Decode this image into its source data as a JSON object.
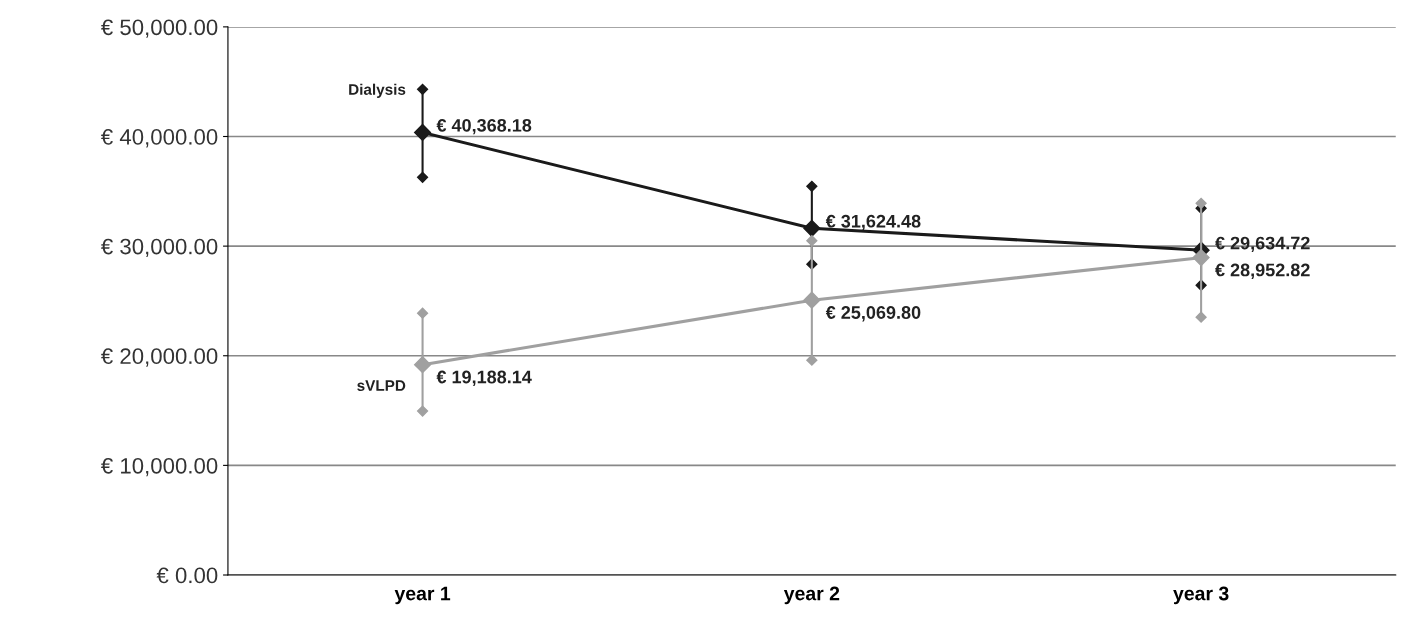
{
  "chart_data": {
    "type": "line",
    "categories": [
      "year 1",
      "year 2",
      "year 3"
    ],
    "series": [
      {
        "name": "Dialysis",
        "color": "#1a1a1a",
        "values": [
          40368.18,
          31624.48,
          29634.72
        ],
        "errors": [
          [
            36280,
            44300
          ],
          [
            28350,
            35460
          ],
          [
            26430,
            33450
          ]
        ],
        "value_labels": [
          "€ 40,368.18",
          "€ 31,624.48",
          "€ 29,634.72"
        ]
      },
      {
        "name": "sVLPD",
        "color": "#a0a0a0",
        "values": [
          19188.14,
          25069.8,
          28952.82
        ],
        "errors": [
          [
            14950,
            23880
          ],
          [
            19600,
            30500
          ],
          [
            23520,
            33900
          ]
        ],
        "value_labels": [
          "€ 19,188.14",
          "€ 25,069.80",
          "€ 28,952.82"
        ]
      }
    ],
    "ylim": [
      0,
      50000
    ],
    "yticks": [
      {
        "value": 0,
        "label": "€ 0.00"
      },
      {
        "value": 10000,
        "label": "€ 10,000.00"
      },
      {
        "value": 20000,
        "label": "€ 20,000.00"
      },
      {
        "value": 30000,
        "label": "€ 30,000.00"
      },
      {
        "value": 40000,
        "label": "€ 40,000.00"
      },
      {
        "value": 50000,
        "label": "€ 50,000.00"
      }
    ],
    "grid": "y",
    "marker": "diamond",
    "line_style": "solid"
  }
}
